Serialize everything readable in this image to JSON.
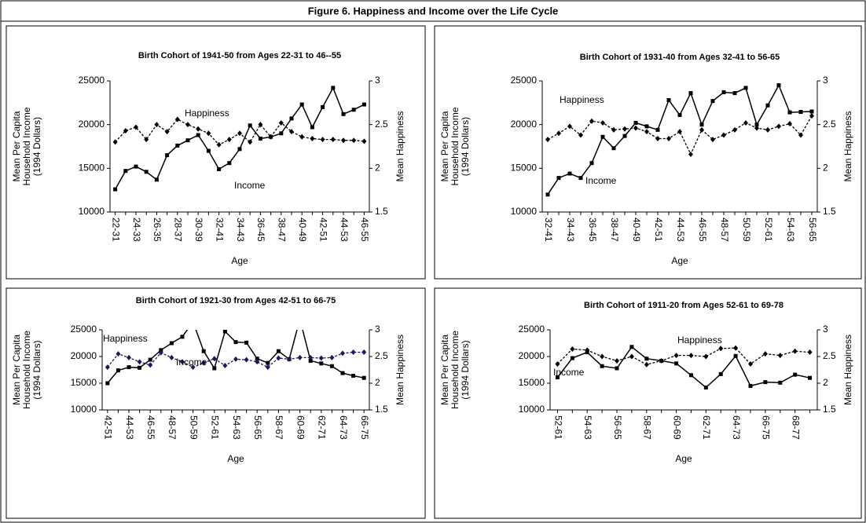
{
  "title": "Figure 6. Happiness and Income over the Life Cycle",
  "chart_data": [
    {
      "type": "line",
      "title": "Birth Cohort of 1941-50 from Ages 22-31 to 46--55",
      "x_label": "Age",
      "y_label": [
        "Mean Per Capita",
        "Household Income",
        "(1994 Dollars)"
      ],
      "y2_label": "Mean Happiness",
      "annotations": [
        "Happiness",
        "Income"
      ],
      "categories": [
        "22-31",
        null,
        "24-33",
        null,
        "26-35",
        null,
        "28-37",
        null,
        "30-39",
        null,
        "32-41",
        null,
        "34-43",
        null,
        "36-45",
        null,
        "38-47",
        null,
        "40-49",
        null,
        "42-51",
        null,
        "44-53",
        null,
        "46-55"
      ],
      "ylim": [
        10000,
        25000
      ],
      "yticks": [
        10000,
        15000,
        20000,
        25000
      ],
      "y2lim": [
        1.5,
        3
      ],
      "y2ticks": [
        1.5,
        2,
        2.5,
        3
      ],
      "series": [
        {
          "name": "Income",
          "color": "#000000",
          "values": [
            12600,
            14700,
            15200,
            14600,
            13700,
            16500,
            17600,
            18200,
            18800,
            17000,
            14900,
            15600,
            17200,
            19900,
            18400,
            18600,
            19000,
            20700,
            22300,
            19700,
            22000,
            24200,
            21200,
            21700,
            22300
          ]
        },
        {
          "name": "Happiness",
          "color": "#000000",
          "axis": "y2",
          "values": [
            2.3,
            2.43,
            2.47,
            2.33,
            2.5,
            2.42,
            2.56,
            2.5,
            2.45,
            2.4,
            2.27,
            2.33,
            2.4,
            2.3,
            2.5,
            2.36,
            2.52,
            2.42,
            2.36,
            2.34,
            2.33,
            2.33,
            2.32,
            2.32,
            2.31
          ]
        }
      ]
    },
    {
      "type": "line",
      "title": "Birth Cohort of 1931-40 from Ages 32-41 to 56-65",
      "x_label": "Age",
      "y_label": [
        "Mean Per Capita",
        "Household Income",
        "(1994 Dollars)"
      ],
      "y2_label": "Mean Happiness",
      "annotations": [
        "Happiness",
        "Income"
      ],
      "categories": [
        "32-41",
        null,
        "34-43",
        null,
        "36-45",
        null,
        "38-47",
        null,
        "40-49",
        null,
        "42-51",
        null,
        "44-53",
        null,
        "46-55",
        null,
        "48-57",
        null,
        "50-59",
        null,
        "52-61",
        null,
        "54-63",
        null,
        "56-65"
      ],
      "ylim": [
        10000,
        25000
      ],
      "yticks": [
        10000,
        15000,
        20000,
        25000
      ],
      "y2lim": [
        1.5,
        3
      ],
      "y2ticks": [
        1.5,
        2,
        2.5,
        3
      ],
      "series": [
        {
          "name": "Income",
          "color": "#000000",
          "values": [
            12000,
            13900,
            14400,
            13900,
            15600,
            18600,
            17300,
            18700,
            20200,
            19800,
            19400,
            22800,
            21100,
            23600,
            20000,
            22700,
            23700,
            23600,
            24200,
            20000,
            22200,
            24500,
            21400,
            21450,
            21500
          ]
        },
        {
          "name": "Happiness",
          "color": "#000000",
          "axis": "y2",
          "values": [
            2.33,
            2.4,
            2.48,
            2.38,
            2.54,
            2.52,
            2.44,
            2.45,
            2.46,
            2.42,
            2.34,
            2.34,
            2.42,
            2.16,
            2.44,
            2.33,
            2.38,
            2.44,
            2.52,
            2.46,
            2.44,
            2.48,
            2.51,
            2.38,
            2.6
          ]
        }
      ]
    },
    {
      "type": "line",
      "title": "Birth Cohort of 1921-30 from Ages 42-51 to 66-75",
      "x_label": "Age",
      "y_label": [
        "Mean Per Capita",
        "Household Income",
        "(1994 Dollars)"
      ],
      "y2_label": "Mean Happiness",
      "annotations": [
        "Happiness",
        "Income"
      ],
      "categories": [
        "42-51",
        null,
        "44-53",
        null,
        "46-55",
        null,
        "48-57",
        null,
        "50-59",
        null,
        "52-61",
        null,
        "54-63",
        null,
        "56-65",
        null,
        "58-67",
        null,
        "60-69",
        null,
        "62-71",
        null,
        "64-73",
        null,
        "66-75"
      ],
      "ylim": [
        10000,
        25000
      ],
      "yticks": [
        10000,
        15000,
        20000,
        25000
      ],
      "y2lim": [
        1.5,
        3
      ],
      "y2ticks": [
        1.5,
        2,
        2.5,
        3
      ],
      "series": [
        {
          "name": "Income",
          "color": "#000000",
          "values": [
            15000,
            17400,
            18000,
            17900,
            19400,
            21200,
            22500,
            23700,
            26500,
            21000,
            17800,
            24700,
            22700,
            22600,
            19600,
            18800,
            21000,
            19500,
            27000,
            19200,
            18700,
            18200,
            16900,
            16400,
            16000
          ]
        },
        {
          "name": "Happiness",
          "color": "#1a1a5e",
          "axis": "y2",
          "values": [
            2.3,
            2.55,
            2.48,
            2.4,
            2.34,
            2.57,
            2.48,
            2.4,
            2.3,
            2.38,
            2.46,
            2.33,
            2.45,
            2.44,
            2.4,
            2.3,
            2.47,
            2.45,
            2.48,
            2.48,
            2.47,
            2.48,
            2.56,
            2.58,
            2.58
          ]
        }
      ]
    },
    {
      "type": "line",
      "title": "Birth Cohort of 1911-20 from Ages 52-61 to 69-78",
      "x_label": "Age",
      "y_label": [
        "Mean Per Capita",
        "Household Income",
        "(1994 Dollars)"
      ],
      "y2_label": "Mean Happiness",
      "annotations": [
        "Happiness",
        "Income"
      ],
      "categories": [
        "52-61",
        null,
        "54-63",
        null,
        "56-65",
        null,
        "58-67",
        null,
        "60-69",
        null,
        "62-71",
        null,
        "64-73",
        null,
        "66-75",
        null,
        "68-77",
        null
      ],
      "ylim": [
        10000,
        25000
      ],
      "yticks": [
        10000,
        15000,
        20000,
        25000
      ],
      "y2lim": [
        1.5,
        3
      ],
      "y2ticks": [
        1.5,
        2,
        2.5,
        3
      ],
      "series": [
        {
          "name": "Income",
          "color": "#000000",
          "values": [
            16100,
            19700,
            20800,
            18200,
            17800,
            21800,
            19600,
            19200,
            18700,
            16500,
            14200,
            16700,
            20100,
            14500,
            15200,
            15100,
            16600,
            16000
          ]
        },
        {
          "name": "Happiness",
          "color": "#000000",
          "axis": "y2",
          "values": [
            2.36,
            2.64,
            2.62,
            2.5,
            2.42,
            2.5,
            2.35,
            2.42,
            2.52,
            2.52,
            2.5,
            2.65,
            2.66,
            2.36,
            2.55,
            2.52,
            2.6,
            2.58
          ]
        }
      ]
    }
  ]
}
